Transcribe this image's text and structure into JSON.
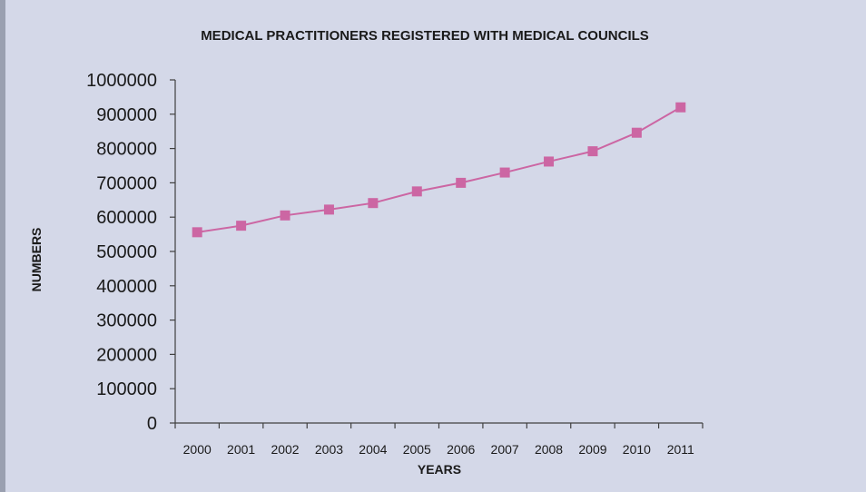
{
  "chart_data": {
    "type": "line",
    "title": "MEDICAL PRACTITIONERS REGISTERED WITH MEDICAL COUNCILS",
    "xlabel": "YEARS",
    "ylabel": "NUMBERS",
    "categories": [
      "2000",
      "2001",
      "2002",
      "2003",
      "2004",
      "2005",
      "2006",
      "2007",
      "2008",
      "2009",
      "2010",
      "2011"
    ],
    "series": [
      {
        "values": [
          556000,
          575000,
          605000,
          622000,
          641000,
          675000,
          700000,
          730000,
          762000,
          792000,
          846000,
          920000
        ]
      }
    ],
    "ylim": [
      0,
      1000000
    ],
    "yticks": [
      0,
      100000,
      200000,
      300000,
      400000,
      500000,
      600000,
      700000,
      800000,
      900000,
      1000000
    ],
    "ytick_labels": [
      "0",
      "100000",
      "200000",
      "300000",
      "400000",
      "500000",
      "600000",
      "700000",
      "800000",
      "900000",
      "1000000"
    ],
    "grid": false,
    "legend": "none",
    "colors": {
      "series": "#cc66a3",
      "marker": "#cc66a3",
      "background": "#d4d8e8"
    }
  }
}
